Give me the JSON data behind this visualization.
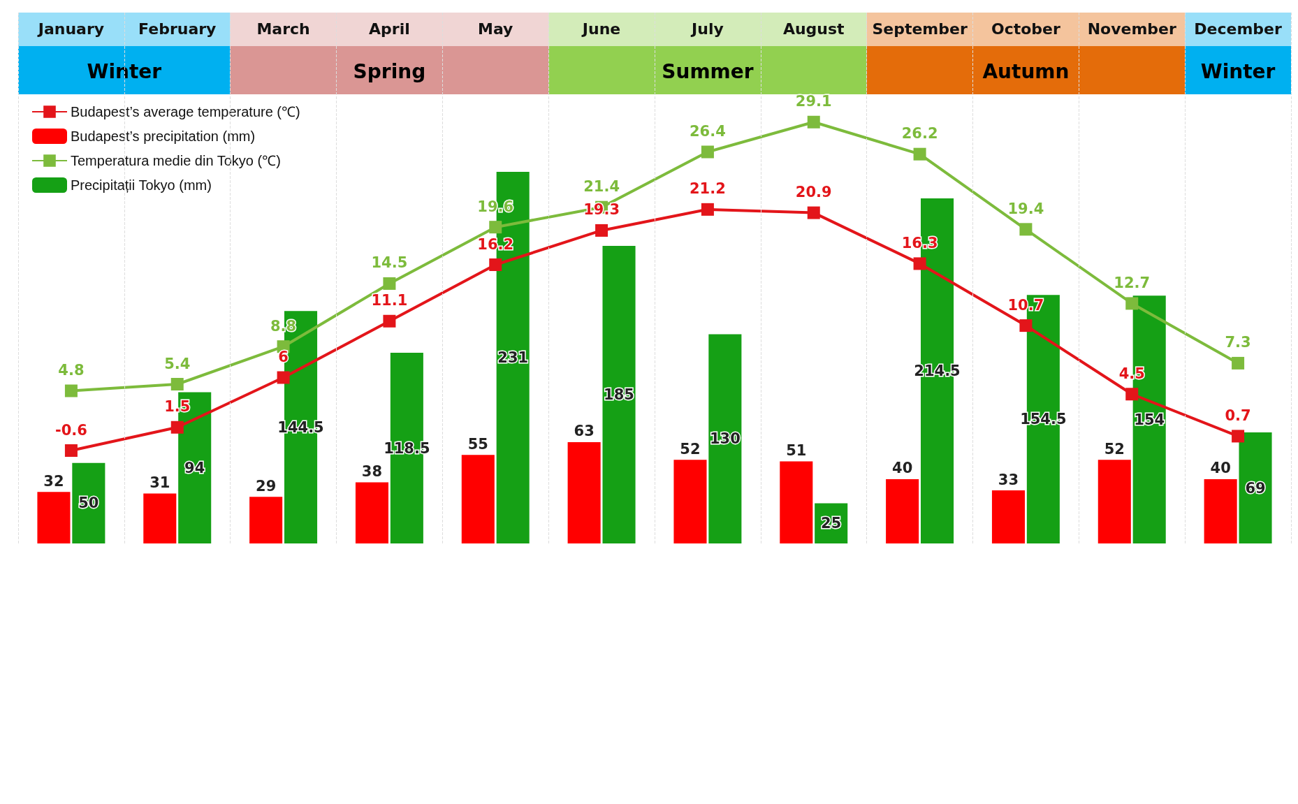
{
  "chart_data": {
    "type": "bar",
    "categories": [
      "January",
      "February",
      "March",
      "April",
      "May",
      "June",
      "July",
      "August",
      "September",
      "October",
      "November",
      "December"
    ],
    "series": [
      {
        "name": "Budapest’s average temperature (℃)",
        "type": "line",
        "axis": "y2",
        "color": "#e3151a",
        "values": [
          -0.6,
          1.5,
          6.0,
          11.1,
          16.2,
          19.3,
          21.2,
          20.9,
          16.3,
          10.7,
          4.5,
          0.7
        ]
      },
      {
        "name": "Budapest’s precipitation (mm)",
        "type": "bar",
        "color": "#ff0000",
        "values": [
          32.0,
          31.0,
          29.0,
          38.0,
          55.0,
          63.0,
          52.0,
          51.0,
          40.0,
          33.0,
          52.0,
          40.0
        ]
      },
      {
        "name": "Temperatura medie din Tokyo (℃)",
        "type": "line",
        "axis": "y2",
        "color": "#7dbb3c",
        "values": [
          4.8,
          5.4,
          8.8,
          14.5,
          19.6,
          21.4,
          26.4,
          29.1,
          26.2,
          19.4,
          12.7,
          7.3
        ]
      },
      {
        "name": "Precipitații Tokyo (mm)",
        "type": "bar",
        "color": "#15a015",
        "values": [
          50.0,
          94.0,
          144.5,
          118.5,
          231.0,
          185.0,
          130.0,
          25.0,
          214.5,
          154.5,
          154.0,
          69.0
        ]
      }
    ],
    "ylim": [
      0,
      330
    ],
    "y2lim": [
      -9,
      39
    ],
    "bands": [
      {
        "axis": "x",
        "from": "January",
        "to": "February",
        "label": "Winter",
        "color": "#00b0f0"
      },
      {
        "axis": "x",
        "from": "March",
        "to": "May",
        "label": "Spring",
        "color": "#da9694"
      },
      {
        "axis": "x",
        "from": "June",
        "to": "August",
        "label": "Summer",
        "color": "#92d050"
      },
      {
        "axis": "x",
        "from": "September",
        "to": "November",
        "label": "Autumn",
        "color": "#e46c0a"
      },
      {
        "axis": "x",
        "from": "December",
        "to": "December",
        "label": "Winter",
        "color": "#00b0f0"
      }
    ],
    "data_labels": true,
    "legend": "top left",
    "marker": "square",
    "grid": "x",
    "tick_labels": "x"
  }
}
